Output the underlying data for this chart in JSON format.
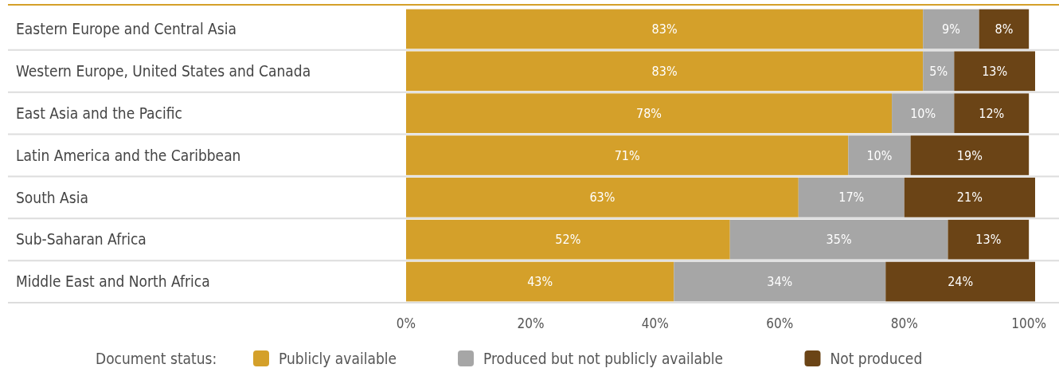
{
  "chart_data": {
    "type": "bar",
    "orientation": "horizontal",
    "stacked": true,
    "legend": "bottom",
    "legend_title": "Document status:",
    "grid": false,
    "categories": [
      "Eastern Europe and Central Asia",
      "Western Europe, United States and Canada",
      "East Asia and the Pacific",
      "Latin America and the Caribbean",
      "South Asia",
      "Sub-Saharan Africa",
      "Middle East and North Africa"
    ],
    "series": [
      {
        "name": "Publicly available",
        "color": "#d4a02a",
        "values": [
          83,
          83,
          78,
          71,
          63,
          52,
          43
        ],
        "value_labels": [
          "83%",
          "83%",
          "78%",
          "71%",
          "63%",
          "52%",
          "43%"
        ]
      },
      {
        "name": "Produced but not publicly available",
        "color": "#a6a6a6",
        "values": [
          9,
          5,
          10,
          10,
          17,
          35,
          34
        ],
        "value_labels": [
          "9%",
          "5%",
          "10%",
          "10%",
          "17%",
          "35%",
          "34%"
        ]
      },
      {
        "name": "Not produced",
        "color": "#6b4416",
        "values": [
          8,
          13,
          12,
          19,
          21,
          13,
          24
        ],
        "value_labels": [
          "8%",
          "13%",
          "12%",
          "19%",
          "21%",
          "13%",
          "24%"
        ]
      }
    ],
    "xlim": [
      0,
      101
    ],
    "xticks": [
      {
        "value": 0,
        "label": "0%"
      },
      {
        "value": 20,
        "label": "20%"
      },
      {
        "value": 40,
        "label": "40%"
      },
      {
        "value": 60,
        "label": "60%"
      },
      {
        "value": 80,
        "label": "80%"
      },
      {
        "value": 100,
        "label": "100%"
      }
    ]
  }
}
